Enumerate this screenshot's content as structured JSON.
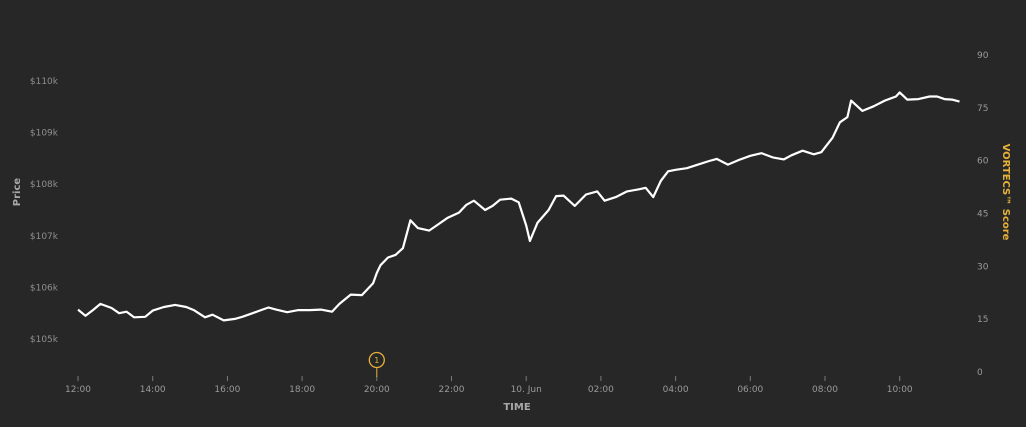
{
  "chart_data": {
    "type": "line",
    "xlabel": "TIME",
    "ylabel": "Price",
    "y2label": "VORTECS™ Score",
    "x_ticks": [
      "12:00",
      "14:00",
      "16:00",
      "18:00",
      "20:00",
      "22:00",
      "10. Jun",
      "02:00",
      "04:00",
      "06:00",
      "08:00",
      "10:00"
    ],
    "y_ticks_left": [
      "$105k",
      "$106k",
      "$107k",
      "$108k",
      "$109k",
      "$110k"
    ],
    "y_ticks_right": [
      "0",
      "15",
      "30",
      "45",
      "60",
      "75",
      "90"
    ],
    "ylim_left": [
      104400,
      111400
    ],
    "ylim_right": [
      0,
      90
    ],
    "x_range_hours": [
      11.8,
      35.6
    ],
    "series": [
      {
        "values": [
          [
            12.0,
            105570
          ],
          [
            12.2,
            105450
          ],
          [
            12.4,
            105560
          ],
          [
            12.6,
            105680
          ],
          [
            12.9,
            105600
          ],
          [
            13.1,
            105500
          ],
          [
            13.3,
            105530
          ],
          [
            13.5,
            105420
          ],
          [
            13.8,
            105430
          ],
          [
            14.0,
            105550
          ],
          [
            14.3,
            105620
          ],
          [
            14.6,
            105660
          ],
          [
            14.9,
            105620
          ],
          [
            15.1,
            105560
          ],
          [
            15.4,
            105420
          ],
          [
            15.6,
            105470
          ],
          [
            15.9,
            105360
          ],
          [
            16.2,
            105390
          ],
          [
            16.4,
            105430
          ],
          [
            16.6,
            105480
          ],
          [
            16.9,
            105560
          ],
          [
            17.1,
            105610
          ],
          [
            17.3,
            105570
          ],
          [
            17.6,
            105520
          ],
          [
            17.9,
            105560
          ],
          [
            18.2,
            105560
          ],
          [
            18.5,
            105570
          ],
          [
            18.8,
            105530
          ],
          [
            19.0,
            105680
          ],
          [
            19.3,
            105860
          ],
          [
            19.6,
            105850
          ],
          [
            19.9,
            106080
          ],
          [
            20.0,
            106280
          ],
          [
            20.1,
            106430
          ],
          [
            20.3,
            106580
          ],
          [
            20.5,
            106630
          ],
          [
            20.7,
            106760
          ],
          [
            20.9,
            107300
          ],
          [
            21.1,
            107150
          ],
          [
            21.4,
            107100
          ],
          [
            21.6,
            107200
          ],
          [
            21.9,
            107350
          ],
          [
            22.2,
            107450
          ],
          [
            22.4,
            107600
          ],
          [
            22.6,
            107680
          ],
          [
            22.9,
            107500
          ],
          [
            23.1,
            107580
          ],
          [
            23.3,
            107700
          ],
          [
            23.6,
            107720
          ],
          [
            23.8,
            107650
          ],
          [
            24.0,
            107200
          ],
          [
            24.1,
            106900
          ],
          [
            24.3,
            107250
          ],
          [
            24.6,
            107500
          ],
          [
            24.8,
            107770
          ],
          [
            25.0,
            107780
          ],
          [
            25.3,
            107580
          ],
          [
            25.6,
            107800
          ],
          [
            25.9,
            107860
          ],
          [
            26.1,
            107680
          ],
          [
            26.4,
            107750
          ],
          [
            26.7,
            107860
          ],
          [
            27.0,
            107900
          ],
          [
            27.2,
            107930
          ],
          [
            27.4,
            107750
          ],
          [
            27.6,
            108060
          ],
          [
            27.8,
            108250
          ],
          [
            28.0,
            108280
          ],
          [
            28.3,
            108310
          ],
          [
            28.6,
            108380
          ],
          [
            28.9,
            108450
          ],
          [
            29.1,
            108490
          ],
          [
            29.4,
            108380
          ],
          [
            29.7,
            108470
          ],
          [
            30.0,
            108550
          ],
          [
            30.3,
            108600
          ],
          [
            30.6,
            108520
          ],
          [
            30.9,
            108480
          ],
          [
            31.1,
            108560
          ],
          [
            31.4,
            108650
          ],
          [
            31.7,
            108580
          ],
          [
            31.9,
            108620
          ],
          [
            32.2,
            108900
          ],
          [
            32.4,
            109200
          ],
          [
            32.6,
            109300
          ],
          [
            32.7,
            109620
          ],
          [
            33.0,
            109420
          ],
          [
            33.3,
            109510
          ],
          [
            33.6,
            109620
          ],
          [
            33.9,
            109700
          ],
          [
            34.0,
            109780
          ],
          [
            34.2,
            109640
          ],
          [
            34.5,
            109650
          ],
          [
            34.8,
            109700
          ],
          [
            35.0,
            109700
          ],
          [
            35.2,
            109650
          ],
          [
            35.4,
            109640
          ],
          [
            35.6,
            109600
          ]
        ]
      }
    ],
    "annotation": {
      "label": "1",
      "x_hours": 20.0
    }
  }
}
